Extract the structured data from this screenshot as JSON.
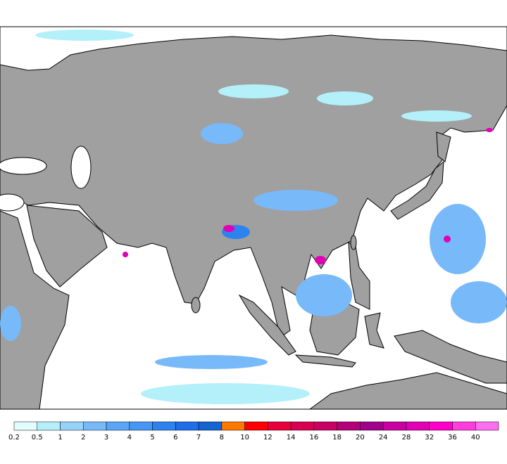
{
  "colorbar": {
    "levels": [
      0.2,
      0.5,
      1,
      2,
      3,
      4,
      5,
      6,
      7,
      8,
      10,
      12,
      14,
      16,
      18,
      20,
      24,
      28,
      32,
      36,
      40
    ],
    "colors": [
      "#e1fdfd",
      "#b4f0fa",
      "#96d2fa",
      "#78b9fa",
      "#5aa5f5",
      "#4696f5",
      "#2d82f0",
      "#1e6eeb",
      "#1464d2",
      "#ff7800",
      "#ff0000",
      "#e6003c",
      "#d70050",
      "#c80064",
      "#b40078",
      "#a0008c",
      "#c800a0",
      "#e100b4",
      "#ff00c8",
      "#ff3cdc",
      "#ff6ef0"
    ]
  }
}
